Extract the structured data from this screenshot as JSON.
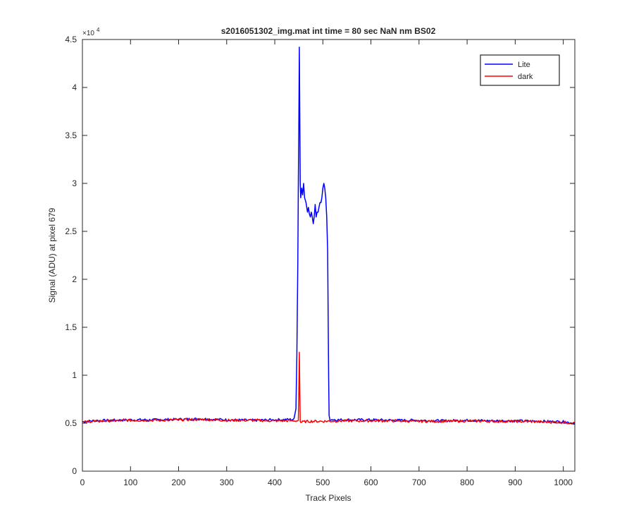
{
  "chart_data": {
    "type": "line",
    "title": "s2016051302_img.mat int time = 80 sec  NaN nm BS02",
    "xlabel": "Track Pixels",
    "ylabel": "Signal (ADU) at pixel 679",
    "xlim": [
      0,
      1024
    ],
    "ylim": [
      0,
      45000
    ],
    "x_ticks": [
      0,
      100,
      200,
      300,
      400,
      500,
      600,
      700,
      800,
      900,
      1000
    ],
    "y_ticks": [
      0,
      5000,
      10000,
      15000,
      20000,
      25000,
      30000,
      35000,
      40000,
      45000
    ],
    "y_tick_labels": [
      "0",
      "0.5",
      "1",
      "1.5",
      "2",
      "2.5",
      "3",
      "3.5",
      "4",
      "4.5"
    ],
    "y_exponent_label": "×10",
    "y_exponent_power": "4",
    "grid": false,
    "legend_position": "top-right",
    "series": [
      {
        "name": "Lite",
        "color": "#0000ff",
        "points": [
          [
            0,
            5150
          ],
          [
            20,
            5250
          ],
          [
            60,
            5300
          ],
          [
            100,
            5350
          ],
          [
            150,
            5350
          ],
          [
            200,
            5400
          ],
          [
            250,
            5450
          ],
          [
            300,
            5350
          ],
          [
            350,
            5300
          ],
          [
            400,
            5350
          ],
          [
            440,
            5400
          ],
          [
            444,
            6500
          ],
          [
            446,
            12000
          ],
          [
            448,
            22000
          ],
          [
            449,
            30000
          ],
          [
            450,
            36000
          ],
          [
            451,
            44200
          ],
          [
            452,
            38000
          ],
          [
            453,
            30000
          ],
          [
            454,
            28500
          ],
          [
            456,
            29500
          ],
          [
            458,
            28800
          ],
          [
            460,
            30000
          ],
          [
            462,
            28500
          ],
          [
            465,
            28000
          ],
          [
            468,
            27000
          ],
          [
            470,
            27500
          ],
          [
            472,
            26800
          ],
          [
            474,
            26500
          ],
          [
            476,
            27000
          ],
          [
            478,
            26500
          ],
          [
            480,
            25800
          ],
          [
            482,
            26500
          ],
          [
            484,
            27800
          ],
          [
            486,
            26500
          ],
          [
            488,
            27000
          ],
          [
            490,
            27000
          ],
          [
            492,
            27500
          ],
          [
            494,
            28000
          ],
          [
            496,
            28000
          ],
          [
            498,
            28500
          ],
          [
            500,
            29500
          ],
          [
            502,
            30000
          ],
          [
            504,
            29500
          ],
          [
            506,
            28500
          ],
          [
            508,
            26500
          ],
          [
            510,
            23000
          ],
          [
            512,
            10000
          ],
          [
            513,
            5800
          ],
          [
            515,
            5400
          ],
          [
            530,
            5350
          ],
          [
            600,
            5350
          ],
          [
            650,
            5300
          ],
          [
            700,
            5300
          ],
          [
            750,
            5250
          ],
          [
            800,
            5300
          ],
          [
            850,
            5250
          ],
          [
            900,
            5250
          ],
          [
            950,
            5200
          ],
          [
            1000,
            5150
          ],
          [
            1024,
            5000
          ]
        ]
      },
      {
        "name": "dark",
        "color": "#ff0000",
        "points": [
          [
            0,
            5100
          ],
          [
            20,
            5200
          ],
          [
            60,
            5250
          ],
          [
            100,
            5300
          ],
          [
            150,
            5300
          ],
          [
            200,
            5350
          ],
          [
            250,
            5400
          ],
          [
            300,
            5300
          ],
          [
            350,
            5300
          ],
          [
            400,
            5250
          ],
          [
            448,
            5250
          ],
          [
            449,
            5300
          ],
          [
            450,
            8000
          ],
          [
            451,
            12400
          ],
          [
            452,
            9000
          ],
          [
            453,
            5200
          ],
          [
            454,
            5100
          ],
          [
            470,
            5200
          ],
          [
            500,
            5200
          ],
          [
            550,
            5250
          ],
          [
            600,
            5250
          ],
          [
            650,
            5250
          ],
          [
            700,
            5200
          ],
          [
            750,
            5200
          ],
          [
            800,
            5250
          ],
          [
            850,
            5200
          ],
          [
            900,
            5200
          ],
          [
            950,
            5150
          ],
          [
            1000,
            5100
          ],
          [
            1024,
            5000
          ]
        ]
      }
    ]
  }
}
